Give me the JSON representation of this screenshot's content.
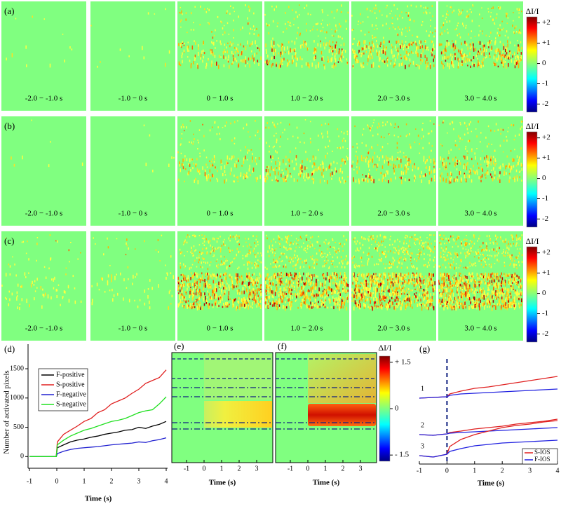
{
  "image_rows": [
    {
      "label": "(a)",
      "panels": [
        "-2.0 − -1.0 s",
        "-1.0 − 0 s",
        "0 − 1.0 s",
        "1.0 − 2.0 s",
        "2.0 − 3.0 s",
        "3.0 − 4.0 s"
      ],
      "colorbar": {
        "label": "ΔI/I",
        "clim": [
          -2.4,
          2.3
        ],
        "ticks": [
          {
            "value": 2,
            "label": "+2"
          },
          {
            "value": 1,
            "label": "+1"
          },
          0,
          -1,
          -2
        ]
      }
    },
    {
      "label": "(b)",
      "panels": [
        "-2.0 − -1.0 s",
        "-1.0 − 0 s",
        "0 − 1.0 s",
        "1.0 − 2.0 s",
        "2.0 − 3.0 s",
        "3.0 − 4.0 s"
      ],
      "colorbar": {
        "label": "ΔI/I",
        "clim": [
          -2.4,
          2.3
        ],
        "ticks": [
          {
            "value": 2,
            "label": "+2"
          },
          {
            "value": 1,
            "label": "+1"
          },
          0,
          -1,
          -2
        ]
      }
    },
    {
      "label": "(c)",
      "panels": [
        "-2.0 − -1.0 s",
        "-1.0 − 0 s",
        "0 − 1.0 s",
        "1.0 − 2.0 s",
        "2.0 − 3.0 s",
        "3.0 − 4.0 s"
      ],
      "colorbar": {
        "label": "ΔI/I",
        "clim": [
          -2.4,
          2.3
        ],
        "ticks": [
          {
            "value": 2,
            "label": "+2"
          },
          {
            "value": 1,
            "label": "+1"
          },
          0,
          -1,
          -2
        ]
      }
    }
  ],
  "chart_data": [
    {
      "type": "line",
      "label": "(d)",
      "ylabel": "Number of activated pixels",
      "xlabel": "Time (s)",
      "x": [
        -1,
        -0.5,
        -0.02,
        0.02,
        0.25,
        0.5,
        0.75,
        1,
        1.25,
        1.5,
        1.75,
        2,
        2.25,
        2.5,
        2.75,
        3,
        3.25,
        3.5,
        3.75,
        4
      ],
      "series": [
        {
          "name": "F-positive",
          "color": "#000000",
          "values": [
            0,
            0,
            0,
            150,
            200,
            250,
            280,
            300,
            330,
            350,
            380,
            400,
            420,
            450,
            460,
            500,
            480,
            520,
            550,
            600
          ]
        },
        {
          "name": "S-positive",
          "color": "#e02020",
          "values": [
            0,
            0,
            0,
            250,
            380,
            450,
            520,
            600,
            650,
            750,
            800,
            900,
            950,
            1000,
            1080,
            1150,
            1250,
            1300,
            1350,
            1480
          ]
        },
        {
          "name": "F-negative",
          "color": "#2020d0",
          "values": [
            0,
            0,
            0,
            50,
            90,
            120,
            140,
            150,
            160,
            170,
            185,
            200,
            210,
            220,
            230,
            250,
            240,
            270,
            290,
            320
          ]
        },
        {
          "name": "S-negative",
          "color": "#20e020",
          "values": [
            0,
            0,
            0,
            200,
            280,
            350,
            400,
            450,
            480,
            520,
            560,
            600,
            620,
            650,
            700,
            750,
            780,
            800,
            900,
            1020
          ]
        }
      ],
      "xlim": [
        -1,
        4
      ],
      "xticks": [
        -1,
        0,
        1,
        2,
        3,
        4
      ],
      "ylim": [
        -200,
        1800
      ],
      "yticks": [
        0,
        500,
        1000,
        1500
      ],
      "legend": "upper left"
    },
    {
      "type": "heatmap",
      "label": "(e)",
      "xlabel": "Time (s)",
      "xlim": [
        -1.84,
        3.92
      ],
      "xticks": [
        -1,
        0,
        1,
        2,
        3
      ]
    },
    {
      "type": "heatmap",
      "label": "(f)",
      "xlabel": "Time (s)",
      "xlim": [
        -1.84,
        3.92
      ],
      "xticks": [
        -1,
        0,
        1,
        2,
        3
      ],
      "colorbar": {
        "label": "ΔI/I",
        "clim": [
          -1.7,
          1.7
        ],
        "ticks": [
          {
            "value": 1.5,
            "label": "+ 1.5"
          },
          0,
          {
            "value": -1.5,
            "label": "- 1.5"
          }
        ]
      }
    },
    {
      "type": "multiline",
      "label": "(g)",
      "xlabel": "Time (s)",
      "x": [
        -1,
        -0.5,
        0,
        0.1,
        0.5,
        1,
        1.5,
        2,
        2.5,
        3,
        3.5,
        4
      ],
      "xlim": [
        -1,
        4
      ],
      "xticks": [
        -1,
        0,
        1,
        2,
        3,
        4
      ],
      "ylim": [
        0,
        172
      ],
      "legend_series": [
        {
          "name": "S-IOS",
          "color": "#e02020"
        },
        {
          "name": "F-IOS",
          "color": "#2020e0"
        }
      ],
      "groups": [
        {
          "label": "1",
          "values": [
            [
              94,
              95,
              96,
              100,
              104,
              108,
              110,
              113,
              116,
              119,
              122,
              125
            ],
            [
              94,
              95,
              96,
              98,
              100,
              101,
              102,
              103,
              104,
              105,
              106,
              107
            ]
          ]
        },
        {
          "label": "2",
          "values": [
            [
              42,
              41,
              43,
              45,
              47,
              50,
              52,
              54,
              57,
              59,
              61,
              64
            ],
            [
              42,
              41,
              43,
              44,
              45,
              46,
              47,
              48,
              49,
              50,
              51,
              52
            ]
          ]
        },
        {
          "label": "3",
          "values": [
            [
              12,
              10,
              14,
              25,
              35,
              42,
              47,
              52,
              55,
              57,
              60,
              62
            ],
            [
              12,
              10,
              14,
              18,
              22,
              26,
              28,
              30,
              31,
              32,
              33,
              34
            ]
          ]
        }
      ]
    }
  ]
}
